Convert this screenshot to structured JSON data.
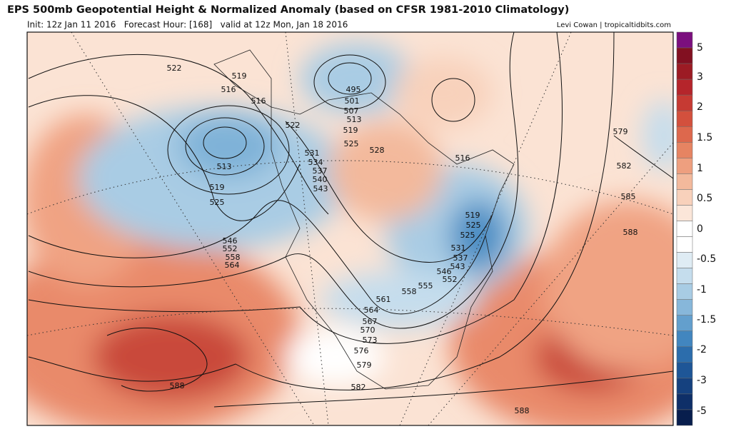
{
  "header": {
    "title": "EPS 500mb Geopotential Height & Normalized Anomaly (based on CFSR 1981-2010 Climatology)",
    "subtitle": "Init: 12z Jan 11 2016   Forecast Hour: [168]   valid at 12z Mon, Jan 18 2016",
    "credit": "Levi Cowan | tropicaltidbits.com"
  },
  "colorbar": {
    "colors": [
      "#7b0f7e",
      "#821021",
      "#9c1b24",
      "#b5252b",
      "#c63a33",
      "#d3503d",
      "#dd684d",
      "#e68462",
      "#ee9f7f",
      "#f3b99c",
      "#f8d1bb",
      "#fbe6d9",
      "#ffffff",
      "#ffffff",
      "#dfecf4",
      "#c5dded",
      "#a8cce4",
      "#87b7da",
      "#639fcd",
      "#4286bf",
      "#2c6dac",
      "#1e5697",
      "#15417f",
      "#0e2f68",
      "#081e4d"
    ],
    "labels": [
      "5",
      "3",
      "2",
      "1.5",
      "1",
      "0.5",
      "0",
      "-0.5",
      "-1",
      "-1.5",
      "-2",
      "-3",
      "-5"
    ]
  },
  "contour_labels": [
    "522",
    "519",
    "516",
    "516",
    "513",
    "519",
    "525",
    "546",
    "552",
    "558",
    "564",
    "522",
    "531",
    "534",
    "537",
    "540",
    "543",
    "495",
    "501",
    "507",
    "513",
    "519",
    "525",
    "528",
    "516",
    "579",
    "582",
    "585",
    "588",
    "519",
    "525",
    "525",
    "531",
    "537",
    "543",
    "546",
    "552",
    "555",
    "558",
    "561",
    "564",
    "567",
    "570",
    "573",
    "576",
    "579",
    "582",
    "588",
    "588"
  ]
}
